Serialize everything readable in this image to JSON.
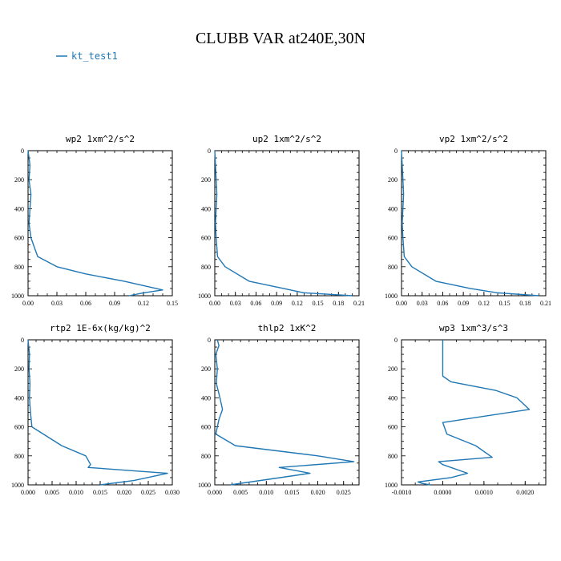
{
  "figure": {
    "title": "CLUBB VAR at240E,30N",
    "legend": {
      "label": "kt_test1",
      "color": "#1f77b4",
      "placement": "top-left"
    }
  },
  "chart_data": [
    {
      "type": "line",
      "title": "wp2   1xm^2/s^2",
      "ylim": [
        1000,
        0
      ],
      "xlim": [
        0,
        0.15
      ],
      "xticks": [
        "0.00",
        "0.03",
        "0.06",
        "0.09",
        "0.12",
        "0.15"
      ],
      "yticks": [
        "0",
        "200",
        "400",
        "600",
        "800",
        "1000"
      ],
      "series": [
        {
          "name": "kt_test1",
          "color": "#1f77b4",
          "x": [
            0.0,
            0.002,
            0.001,
            0.003,
            0.002,
            0.001,
            0.003,
            0.01,
            0.03,
            0.06,
            0.1,
            0.14,
            0.12,
            0.105
          ],
          "y": [
            0,
            100,
            200,
            300,
            400,
            500,
            600,
            730,
            800,
            850,
            900,
            960,
            980,
            1000
          ]
        }
      ]
    },
    {
      "type": "line",
      "title": "up2   1xm^2/s^2",
      "ylim": [
        1000,
        0
      ],
      "xlim": [
        0,
        0.21
      ],
      "xticks": [
        "0.00",
        "0.03",
        "0.06",
        "0.09",
        "0.12",
        "0.15",
        "0.18",
        "0.21"
      ],
      "yticks": [
        "0",
        "200",
        "400",
        "600",
        "800",
        "1000"
      ],
      "series": [
        {
          "name": "kt_test1",
          "color": "#1f77b4",
          "x": [
            0.0,
            0.001,
            0.002,
            0.003,
            0.002,
            0.001,
            0.002,
            0.004,
            0.015,
            0.05,
            0.1,
            0.13,
            0.2
          ],
          "y": [
            0,
            100,
            200,
            300,
            400,
            500,
            600,
            730,
            800,
            900,
            950,
            980,
            1000
          ]
        }
      ]
    },
    {
      "type": "line",
      "title": "vp2   1xm^2/s^2",
      "ylim": [
        1000,
        0
      ],
      "xlim": [
        0,
        0.21
      ],
      "xticks": [
        "0.00",
        "0.03",
        "0.06",
        "0.09",
        "0.12",
        "0.15",
        "0.18",
        "0.21"
      ],
      "yticks": [
        "0",
        "200",
        "400",
        "600",
        "800",
        "1000"
      ],
      "series": [
        {
          "name": "kt_test1",
          "color": "#1f77b4",
          "x": [
            0.0,
            0.001,
            0.002,
            0.003,
            0.002,
            0.001,
            0.002,
            0.004,
            0.015,
            0.05,
            0.1,
            0.14,
            0.2
          ],
          "y": [
            0,
            100,
            200,
            300,
            400,
            500,
            600,
            730,
            800,
            900,
            950,
            980,
            1000
          ]
        }
      ]
    },
    {
      "type": "line",
      "title": "rtp2   1E-6x(kg/kg)^2",
      "ylim": [
        1000,
        0
      ],
      "xlim": [
        0,
        0.03
      ],
      "xticks": [
        "0.000",
        "0.005",
        "0.010",
        "0.015",
        "0.020",
        "0.025",
        "0.030"
      ],
      "yticks": [
        "0",
        "200",
        "400",
        "600",
        "800",
        "1000"
      ],
      "series": [
        {
          "name": "kt_test1",
          "color": "#1f77b4",
          "x": [
            0.0,
            0.0003,
            0.0002,
            0.0004,
            0.0003,
            0.0005,
            0.0008,
            0.007,
            0.012,
            0.013,
            0.0125,
            0.029,
            0.022,
            0.015
          ],
          "y": [
            0,
            100,
            200,
            300,
            400,
            500,
            600,
            730,
            800,
            860,
            880,
            920,
            970,
            1000
          ]
        }
      ]
    },
    {
      "type": "line",
      "title": "thlp2   1xK^2",
      "ylim": [
        1000,
        0
      ],
      "xlim": [
        0,
        0.028
      ],
      "xticks": [
        "0.000",
        "0.005",
        "0.010",
        "0.015",
        "0.020",
        "0.025"
      ],
      "yticks": [
        "0",
        "200",
        "400",
        "600",
        "800",
        "1000"
      ],
      "series": [
        {
          "name": "kt_test1",
          "color": "#1f77b4",
          "x": [
            0.0005,
            0.0008,
            0.0002,
            0.0005,
            0.0003,
            0.001,
            0.0015,
            0.0008,
            0.0002,
            0.004,
            0.02,
            0.027,
            0.0125,
            0.0185,
            0.003
          ],
          "y": [
            0,
            40,
            100,
            200,
            300,
            400,
            480,
            550,
            650,
            730,
            800,
            840,
            880,
            920,
            1000
          ]
        }
      ]
    },
    {
      "type": "line",
      "title": "wp3   1xm^3/s^3",
      "ylim": [
        1000,
        0
      ],
      "xlim": [
        -0.001,
        0.0025
      ],
      "xticks": [
        "-0.0010",
        "0.0000",
        "0.0010",
        "0.0020"
      ],
      "yticks": [
        "0",
        "200",
        "400",
        "600",
        "800",
        "1000"
      ],
      "series": [
        {
          "name": "kt_test1",
          "color": "#1f77b4",
          "x": [
            0.0,
            0.0,
            0.0,
            0.0002,
            0.0013,
            0.0018,
            0.0021,
            0.0,
            0.0001,
            0.0008,
            0.0012,
            -0.0001,
            0.0,
            0.0006,
            0.0002,
            -0.0006,
            -0.0005,
            -0.0003
          ],
          "y": [
            0,
            150,
            250,
            290,
            350,
            400,
            480,
            570,
            650,
            730,
            810,
            840,
            860,
            920,
            950,
            980,
            990,
            1000
          ]
        }
      ]
    }
  ]
}
